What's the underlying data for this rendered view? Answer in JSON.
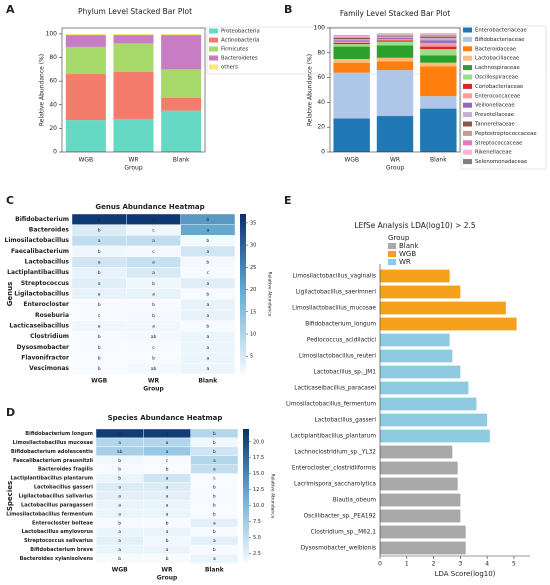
{
  "chart_data": [
    {
      "type": "stacked_bar",
      "label": "A",
      "title": "Phylum Level Stacked Bar Plot",
      "xlabel": "Group",
      "ylabel": "Relative Abundance (%)",
      "categories": [
        "WGB",
        "WR",
        "Blank"
      ],
      "ylim": [
        0,
        105
      ],
      "yticks": [
        0,
        20,
        40,
        60,
        80,
        100
      ],
      "series": [
        {
          "name": "Proteobacteria",
          "color": "#66d9c4",
          "values": [
            27,
            28,
            35
          ]
        },
        {
          "name": "Actinobacteria",
          "color": "#f47c6c",
          "values": [
            39,
            40,
            11
          ]
        },
        {
          "name": "Firmicutes",
          "color": "#a6d96a",
          "values": [
            23,
            24,
            24
          ]
        },
        {
          "name": "Bacteroidetes",
          "color": "#c77cc4",
          "values": [
            10,
            7,
            29
          ]
        },
        {
          "name": "others",
          "color": "#f5e97a",
          "values": [
            1,
            1,
            1
          ]
        }
      ]
    },
    {
      "type": "stacked_bar",
      "label": "B",
      "title": "Family Level Stacked Bar Plot",
      "xlabel": "Group",
      "ylabel": "Relative Abundance (%)",
      "categories": [
        "WGB",
        "WR",
        "Blank"
      ],
      "ylim": [
        0,
        100
      ],
      "yticks": [
        0,
        20,
        40,
        60,
        80,
        100
      ],
      "series": [
        {
          "name": "Enterobacteriaceae",
          "color": "#1f77b4",
          "values": [
            27,
            29,
            35
          ]
        },
        {
          "name": "Bifidobacteriaceae",
          "color": "#aec7e8",
          "values": [
            37,
            37,
            10
          ]
        },
        {
          "name": "Bacteroidaceae",
          "color": "#ff7f0e",
          "values": [
            8,
            7,
            24
          ]
        },
        {
          "name": "Lactobacillaceae",
          "color": "#ffbb78",
          "values": [
            3,
            3,
            3
          ]
        },
        {
          "name": "Lachnospiraceae",
          "color": "#2ca02c",
          "values": [
            10,
            10,
            6
          ]
        },
        {
          "name": "Oscillospiraceae",
          "color": "#98df8a",
          "values": [
            2,
            3,
            5
          ]
        },
        {
          "name": "Coriobacteriaceae",
          "color": "#d62728",
          "values": [
            1,
            1,
            2
          ]
        },
        {
          "name": "Enterococcaceae",
          "color": "#ff9896",
          "values": [
            1,
            1,
            3
          ]
        },
        {
          "name": "Veillonellaceae",
          "color": "#9467bd",
          "values": [
            1,
            1,
            2
          ]
        },
        {
          "name": "Prevotellaceae",
          "color": "#c5b0d5",
          "values": [
            1,
            1,
            2
          ]
        },
        {
          "name": "Tannerellaceae",
          "color": "#8c564b",
          "values": [
            1,
            0.5,
            1
          ]
        },
        {
          "name": "Peptostreptococcaceae",
          "color": "#c49c94",
          "values": [
            0.5,
            0.5,
            1
          ]
        },
        {
          "name": "Streptococcaceae",
          "color": "#e377c2",
          "values": [
            0.5,
            0.5,
            0.5
          ]
        },
        {
          "name": "Rikenellaceae",
          "color": "#f7b6d2",
          "values": [
            0.5,
            0.5,
            0.5
          ]
        },
        {
          "name": "Selenomonadaceae",
          "color": "#7f7f7f",
          "values": [
            0.5,
            0.5,
            0.5
          ]
        }
      ]
    },
    {
      "type": "heatmap",
      "label": "C",
      "title": "Genus Abundance Heatmap",
      "xlabel": "Group",
      "ylabel": "Genus",
      "colorbar_label": "Relative Abundance",
      "x": [
        "WGB",
        "WR",
        "Blank"
      ],
      "y": [
        "Bifidobacterium",
        "Bacteroides",
        "Limosilactobacillus",
        "Faecalibacterium",
        "Lactobacillus",
        "Lactiplantibacillus",
        "Streptococcus",
        "Ligilactobacillus",
        "Enterocloster",
        "Roseburia",
        "Lacticaseibacillus",
        "Clostridium",
        "Dysosmobacter",
        "Flavonifractor",
        "Vescimonas"
      ],
      "z": [
        [
          35.5,
          35.8,
          22
        ],
        [
          4.5,
          2,
          20
        ],
        [
          8,
          8,
          1.5
        ],
        [
          2,
          1.5,
          6
        ],
        [
          6,
          7,
          1.5
        ],
        [
          3,
          5,
          1
        ],
        [
          4,
          2,
          4
        ],
        [
          3,
          3,
          1
        ],
        [
          1,
          1,
          3
        ],
        [
          1,
          1.5,
          3
        ],
        [
          2,
          2,
          1
        ],
        [
          1,
          1.5,
          2.5
        ],
        [
          1,
          0.8,
          2.5
        ],
        [
          1,
          1,
          2.5
        ],
        [
          1,
          1.5,
          2.5
        ]
      ],
      "annotations": [
        [
          "a",
          "a",
          "b"
        ],
        [
          "b",
          "c",
          "a"
        ],
        [
          "a",
          "a",
          "b"
        ],
        [
          "b",
          "c",
          "a"
        ],
        [
          "a",
          "a",
          "b"
        ],
        [
          "b",
          "a",
          "c"
        ],
        [
          "a",
          "b",
          "a"
        ],
        [
          "a",
          "a",
          "b"
        ],
        [
          "b",
          "b",
          "a"
        ],
        [
          "c",
          "b",
          "a"
        ],
        [
          "a",
          "a",
          "b"
        ],
        [
          "b",
          "ab",
          "a"
        ],
        [
          "b",
          "c",
          "a"
        ],
        [
          "b",
          "b",
          "a"
        ],
        [
          "b",
          "ab",
          "a"
        ]
      ],
      "zlim": [
        1,
        37
      ],
      "zticks": [
        5,
        10,
        15,
        20,
        25,
        30,
        35
      ]
    },
    {
      "type": "heatmap",
      "label": "D",
      "title": "Species Abundance Heatmap",
      "xlabel": "Group",
      "ylabel": "Species",
      "colorbar_label": "Relative Abundance",
      "x": [
        "WGB",
        "WR",
        "Blank"
      ],
      "y": [
        "Bifidobacterium longum",
        "Limosilactobacillus mucosae",
        "Bifidobacterium adolescentis",
        "Faecalibacterium prausnitzii",
        "Bacteroides fragilis",
        "Lactiplantibacillus plantarum",
        "Lactobacillus gasseri",
        "Ligilactobacillus salivarius",
        "Lactobacillus paragasseri",
        "Limosilactobacillus fermentum",
        "Enterocloster bolteae",
        "Lactobacillus amylovorus",
        "Streptococcus salivarius",
        "Bifidobacterium breve",
        "Bacteroides xylanisolvens"
      ],
      "z": [
        [
          21,
          21,
          6
        ],
        [
          6,
          6,
          1.5
        ],
        [
          7,
          8,
          4
        ],
        [
          1.5,
          1,
          6
        ],
        [
          1,
          1,
          5
        ],
        [
          2,
          4,
          1
        ],
        [
          3,
          3,
          1
        ],
        [
          2.5,
          2.5,
          1
        ],
        [
          2,
          2,
          1
        ],
        [
          2,
          2,
          1
        ],
        [
          1,
          1,
          2.5
        ],
        [
          2,
          2,
          1
        ],
        [
          2.5,
          1.5,
          2.5
        ],
        [
          2,
          2,
          1
        ],
        [
          1,
          1,
          2
        ]
      ],
      "annotations": [
        [
          "a",
          "a",
          "b"
        ],
        [
          "a",
          "a",
          "b"
        ],
        [
          "ab",
          "a",
          "b"
        ],
        [
          "b",
          "c",
          "a"
        ],
        [
          "b",
          "b",
          "a"
        ],
        [
          "b",
          "a",
          "c"
        ],
        [
          "a",
          "a",
          "b"
        ],
        [
          "a",
          "a",
          "b"
        ],
        [
          "a",
          "a",
          "b"
        ],
        [
          "a",
          "a",
          "b"
        ],
        [
          "b",
          "b",
          "a"
        ],
        [
          "a",
          "a",
          "b"
        ],
        [
          "a",
          "b",
          "a"
        ],
        [
          "a",
          "a",
          "b"
        ],
        [
          "b",
          "b",
          "a"
        ]
      ],
      "zlim": [
        1,
        22
      ],
      "zticks": [
        2.5,
        {
          "value": 5,
          "label": "5.0"
        },
        7.5,
        {
          "value": 10,
          "label": "10.0"
        },
        12.5,
        {
          "value": 15,
          "label": "15.0"
        },
        17.5,
        {
          "value": 20,
          "label": "20.0"
        }
      ]
    },
    {
      "type": "hbar",
      "label": "E",
      "title": "LEfSe Analysis LDA(log10) > 2.5",
      "xlabel": "LDA Score(log10)",
      "legend_title": "Group",
      "categories": [
        "Limosilactobacillus_vaginalis",
        "Ligilactobacillus_saerimneri",
        "Limosilactobacillus_mucosae",
        "Bifidobacterium_longum",
        "Pediococcus_acidilactici",
        "Limosilactobacillus_reuteri",
        "Lactobacillus_sp._JM1",
        "Lacticaseibacillus_paracasei",
        "Limosilactobacillus_fermentum",
        "Lactobacillus_gasseri",
        "Lactiplantibacillus_plantarum",
        "Lachnoclostridium_sp._YL32",
        "Enterocloster_clostridiiformis",
        "Lacrimispora_saccharolytica",
        "Blautia_obeum",
        "Oscillibacter_sp._PEA192",
        "Clostridium_sp._M62.1",
        "Dysosmobacter_welbionis"
      ],
      "xlim": [
        0,
        5.6
      ],
      "xticks": [
        0,
        1,
        2,
        3,
        4,
        5
      ],
      "series": [
        {
          "name": "Blank",
          "color": "#a9a9a9",
          "values": [
            null,
            null,
            null,
            null,
            null,
            null,
            null,
            null,
            null,
            null,
            null,
            2.7,
            2.9,
            2.9,
            3.0,
            3.0,
            3.2,
            3.2
          ]
        },
        {
          "name": "WGB",
          "color": "#f5a11c",
          "values": [
            2.6,
            3.0,
            4.7,
            5.1,
            null,
            null,
            null,
            null,
            null,
            null,
            null,
            null,
            null,
            null,
            null,
            null,
            null,
            null
          ]
        },
        {
          "name": "WR",
          "color": "#8fcbe0",
          "values": [
            null,
            null,
            null,
            null,
            2.6,
            2.7,
            3.0,
            3.3,
            3.6,
            4.0,
            4.1,
            null,
            null,
            null,
            null,
            null,
            null,
            null
          ]
        }
      ]
    }
  ]
}
